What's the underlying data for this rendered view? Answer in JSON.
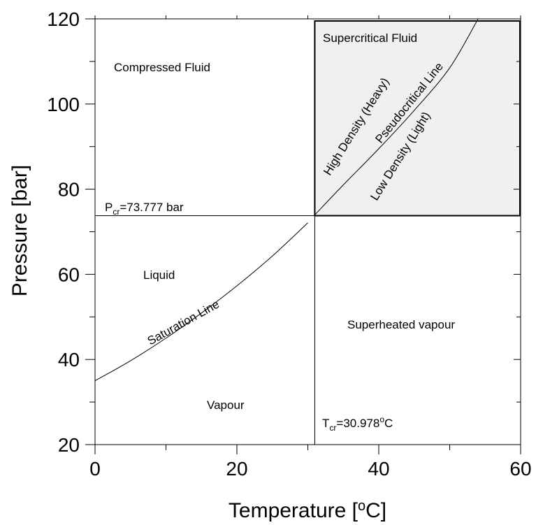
{
  "chart_data": {
    "type": "line",
    "xlabel": {
      "main": "Temperature [",
      "sup": "o",
      "end": "C]"
    },
    "ylabel": "Pressure [bar]",
    "xlim": [
      0,
      60
    ],
    "ylim": [
      20,
      120
    ],
    "x_ticks": [
      0,
      20,
      40,
      60
    ],
    "y_ticks": [
      20,
      40,
      60,
      80,
      100,
      120
    ],
    "x_minor_step": 10,
    "y_minor_step": 10,
    "critical_point": {
      "T": 30.978,
      "P": 73.777
    },
    "supercritical_region_color": "#f0f0f0",
    "series": [
      {
        "name": "Saturation Line",
        "x": [
          0,
          5,
          10,
          15,
          20,
          25,
          30
        ],
        "y": [
          35,
          39.7,
          45,
          50.9,
          57.3,
          64.3,
          72.1
        ]
      },
      {
        "name": "Pseudocritical Line",
        "x": [
          31,
          35,
          40,
          45,
          50,
          54
        ],
        "y": [
          74,
          81,
          89.5,
          98.5,
          108.5,
          120
        ]
      }
    ],
    "annotations": {
      "compressed_fluid": "Compressed Fluid",
      "supercritical_fluid": "Supercritical Fluid",
      "high_density": "High Density (Heavy)",
      "pseudocritical_line": "Pseudocritical Line",
      "low_density": "Low Density (Light)",
      "liquid": "Liquid",
      "saturation_line": "Saturation Line",
      "superheated_vapour": "Superheated vapour",
      "vapour": "Vapour",
      "pcr": {
        "main": "P",
        "sub": "cr",
        "rest": "=73.777 bar"
      },
      "tcr": {
        "main": "T",
        "sub": "cr",
        "rest": "=30.978",
        "sup": "o",
        "end": "C"
      }
    }
  }
}
